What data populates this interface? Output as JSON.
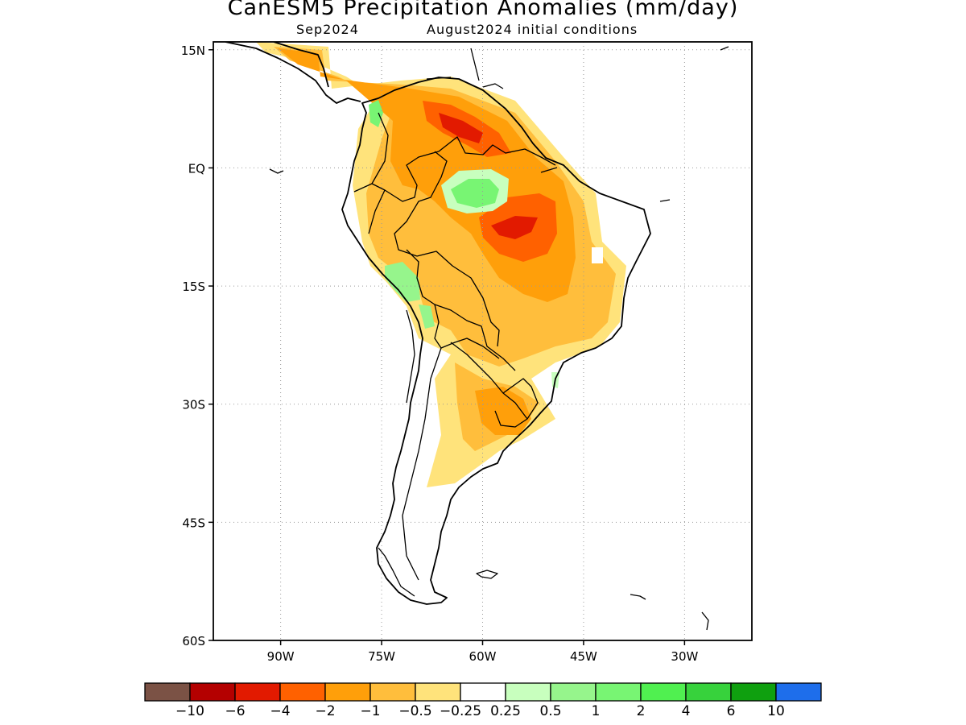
{
  "title": "CanESM5 Precipitation Anomalies (mm/day)",
  "subtitle_left": "Sep2024",
  "subtitle_right": "August2024 initial conditions",
  "lat_ticks": [
    {
      "label": "15N",
      "lat": 15
    },
    {
      "label": "EQ",
      "lat": 0
    },
    {
      "label": "15S",
      "lat": -15
    },
    {
      "label": "30S",
      "lat": -30
    },
    {
      "label": "45S",
      "lat": -45
    },
    {
      "label": "60S",
      "lat": -60
    }
  ],
  "lon_ticks": [
    {
      "label": "90W",
      "lon": -90
    },
    {
      "label": "75W",
      "lon": -75
    },
    {
      "label": "60W",
      "lon": -60
    },
    {
      "label": "45W",
      "lon": -45
    },
    {
      "label": "30W",
      "lon": -30
    }
  ],
  "map_extent": {
    "lon_min": -100,
    "lon_max": -20,
    "lat_min": -60,
    "lat_max": 16
  },
  "grid": true,
  "colorbar": {
    "colors": [
      "#7b5245",
      "#b40000",
      "#e21a00",
      "#ff6100",
      "#ff9f0a",
      "#ffbe3c",
      "#ffe37b",
      "#ffffff",
      "#c8ffbe",
      "#96f58c",
      "#78f573",
      "#50f050",
      "#37d23c",
      "#0fa00f",
      "#1e6eeb"
    ],
    "labels": [
      "-10",
      "-6",
      "-4",
      "-2",
      "-1",
      "-0.5",
      "-0.25",
      "0.25",
      "0.5",
      "1",
      "2",
      "4",
      "6",
      "10"
    ]
  }
}
